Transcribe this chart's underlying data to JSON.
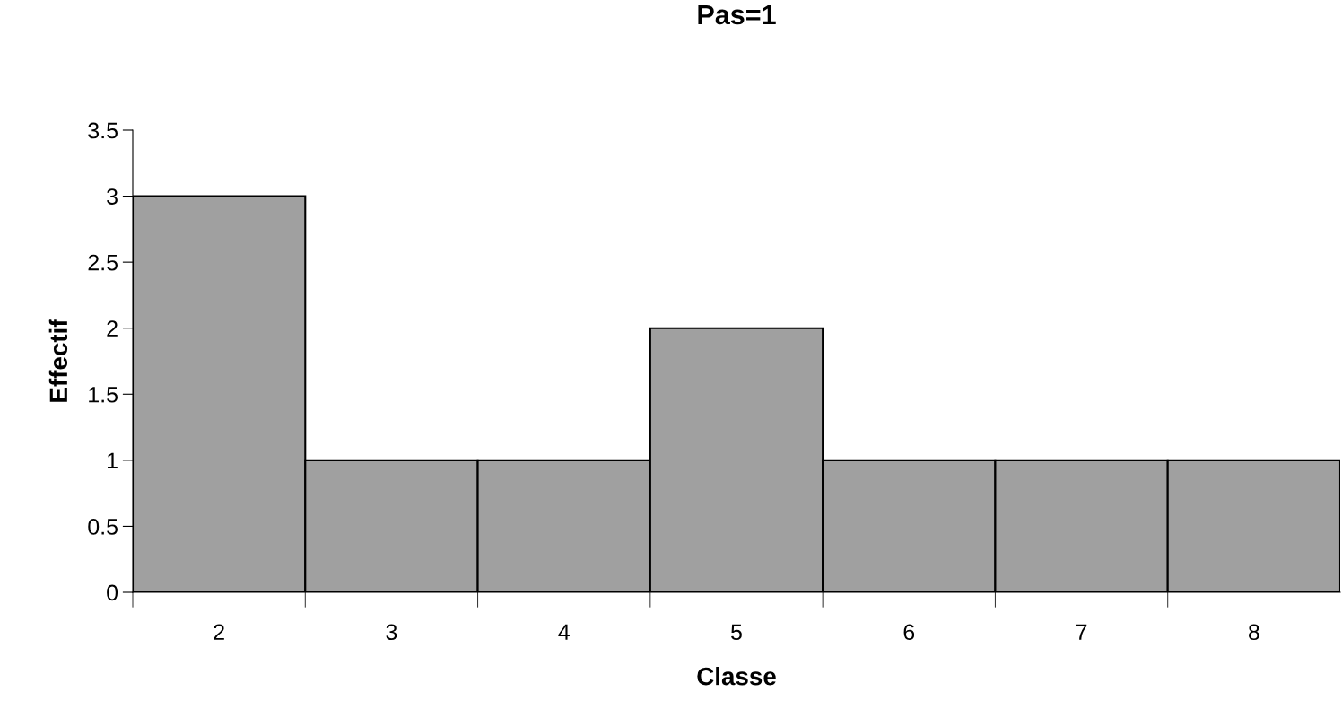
{
  "chart_data": {
    "type": "bar",
    "title": "Pas=1",
    "xlabel": "Classe",
    "ylabel": "Effectif",
    "categories": [
      "2",
      "3",
      "4",
      "5",
      "6",
      "7",
      "8"
    ],
    "values": [
      3,
      1,
      1,
      2,
      1,
      1,
      1
    ],
    "color": "#a0a0a0",
    "ylim": [
      0,
      3.5
    ],
    "yticks": [
      0,
      0.5,
      1,
      1.5,
      2,
      2.5,
      3,
      3.5
    ],
    "grid": false
  }
}
